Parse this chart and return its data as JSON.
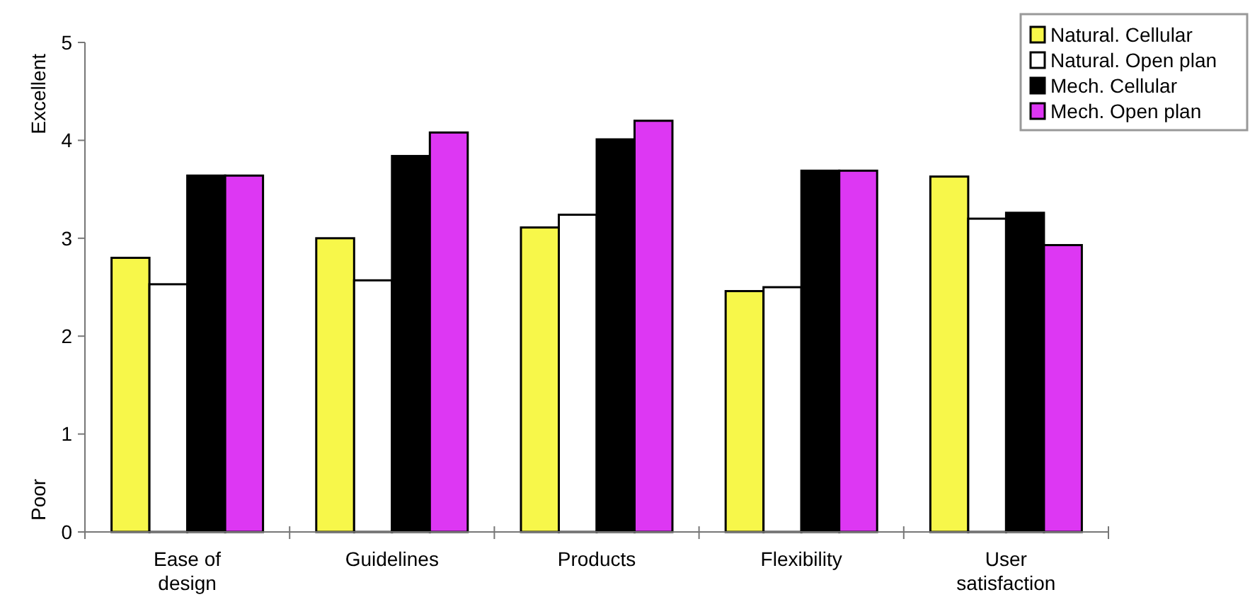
{
  "chart_data": {
    "type": "bar",
    "categories": [
      "Ease of design",
      "Guidelines",
      "Products",
      "Flexibility",
      "User satisfaction"
    ],
    "series": [
      {
        "name": "Natural. Cellular",
        "color": "#f7f74a",
        "values": [
          2.8,
          3.0,
          3.11,
          2.46,
          3.63
        ]
      },
      {
        "name": "Natural. Open plan",
        "color": "#ffffff",
        "values": [
          2.53,
          2.57,
          3.24,
          2.5,
          3.2
        ]
      },
      {
        "name": "Mech. Cellular",
        "color": "#000000",
        "values": [
          3.64,
          3.84,
          4.01,
          3.69,
          3.26
        ]
      },
      {
        "name": "Mech. Open plan",
        "color": "#dd37f3",
        "values": [
          3.64,
          4.08,
          4.2,
          3.69,
          2.93
        ]
      }
    ],
    "ylim": [
      0,
      5
    ],
    "yticks": [
      0,
      1,
      2,
      3,
      4,
      5
    ],
    "grid": false,
    "legend": "top right",
    "annotations": [
      "Excellent",
      "Poor"
    ]
  }
}
